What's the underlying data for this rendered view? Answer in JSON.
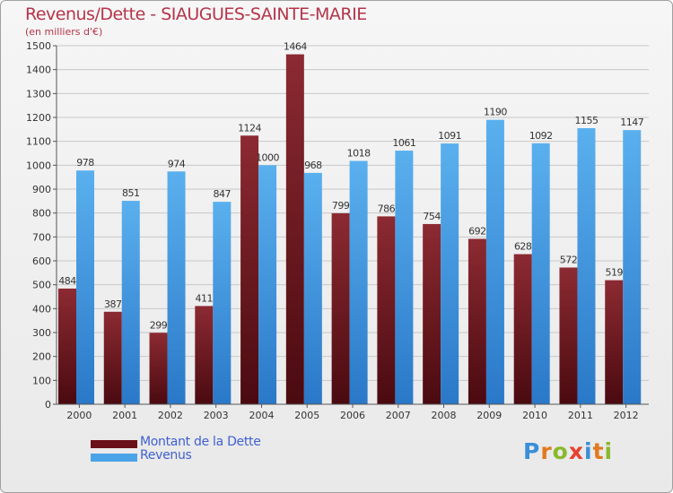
{
  "chart_data": {
    "type": "bar",
    "title": "Revenus/Dette - SIAUGUES-SAINTE-MARIE",
    "subtitle": "(en milliers d'€)",
    "categories": [
      "2000",
      "2001",
      "2002",
      "2003",
      "2004",
      "2005",
      "2006",
      "2007",
      "2008",
      "2009",
      "2010",
      "2011",
      "2012"
    ],
    "series": [
      {
        "name": "Montant de la Dette",
        "color": "#7a1f28",
        "values": [
          484,
          387,
          299,
          411,
          1124,
          1464,
          799,
          786,
          754,
          692,
          628,
          572,
          519
        ]
      },
      {
        "name": "Revenus",
        "color": "#4aa3e6",
        "values": [
          978,
          851,
          974,
          847,
          1000,
          968,
          1018,
          1061,
          1091,
          1190,
          1092,
          1155,
          1147
        ]
      }
    ],
    "ylim": [
      0,
      1500
    ],
    "yticks": [
      0,
      100,
      200,
      300,
      400,
      500,
      600,
      700,
      800,
      900,
      1000,
      1100,
      1200,
      1300,
      1400,
      1500
    ],
    "grid": true,
    "legend": "bottom-left"
  },
  "logo": {
    "letters": [
      "P",
      "r",
      "o",
      "x",
      "i",
      "t",
      "i"
    ],
    "colors": [
      "#3a8fd8",
      "#e07a20",
      "#8ab82c",
      "#e84030",
      "#3a8fd8",
      "#e07a20",
      "#8ab82c"
    ]
  }
}
